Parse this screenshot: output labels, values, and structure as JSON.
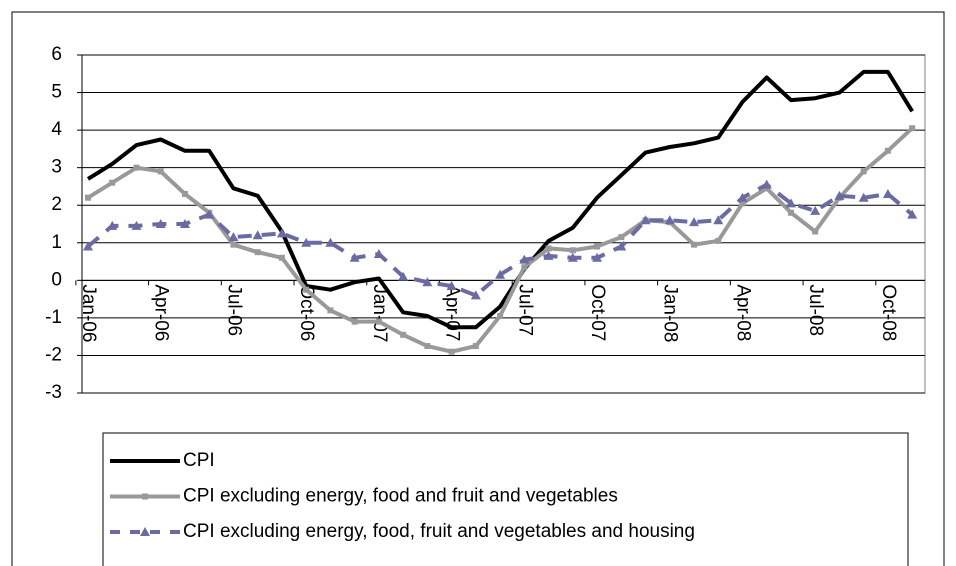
{
  "chart_data": {
    "type": "line",
    "categories": [
      "Jan-06",
      null,
      null,
      "Apr-06",
      null,
      null,
      "Jul-06",
      null,
      null,
      "Oct-06",
      null,
      null,
      "Jan-07",
      null,
      null,
      "Apr-07",
      null,
      null,
      "Jul-07",
      null,
      null,
      "Oct-07",
      null,
      null,
      "Jan-08",
      null,
      null,
      "Apr-08",
      null,
      null,
      "Jul-08",
      null,
      null,
      "Oct-08",
      null
    ],
    "series": [
      {
        "name": "CPI",
        "color": "#000000",
        "style": "solid",
        "marker": "none",
        "values": [
          2.7,
          3.1,
          3.6,
          3.75,
          3.45,
          3.45,
          2.45,
          2.25,
          1.3,
          -0.15,
          -0.25,
          -0.05,
          0.05,
          -0.85,
          -0.95,
          -1.25,
          -1.25,
          -0.7,
          0.3,
          1.05,
          1.4,
          2.2,
          2.8,
          3.4,
          3.55,
          3.65,
          3.8,
          4.75,
          5.4,
          4.8,
          4.85,
          5.0,
          5.55,
          5.55,
          4.5
        ]
      },
      {
        "name": "CPI excluding energy, food and fruit and vegetables",
        "color": "#999999",
        "style": "solid",
        "marker": "square",
        "values": [
          2.2,
          2.6,
          3.0,
          2.9,
          2.3,
          1.8,
          0.95,
          0.75,
          0.6,
          -0.25,
          -0.8,
          -1.1,
          -1.1,
          -1.45,
          -1.75,
          -1.9,
          -1.75,
          -0.95,
          0.35,
          0.85,
          0.8,
          0.9,
          1.15,
          1.6,
          1.55,
          0.95,
          1.05,
          2.05,
          2.45,
          1.8,
          1.3,
          2.2,
          2.9,
          3.45,
          4.05
        ]
      },
      {
        "name": "CPI excluding energy, food, fruit and vegetables and housing",
        "color": "#6b6ba3",
        "style": "dashed",
        "marker": "triangle",
        "values": [
          0.9,
          1.45,
          1.45,
          1.5,
          1.5,
          1.75,
          1.15,
          1.2,
          1.25,
          1.0,
          1.0,
          0.6,
          0.7,
          0.1,
          -0.05,
          -0.15,
          -0.4,
          0.15,
          0.55,
          0.65,
          0.6,
          0.6,
          0.9,
          1.6,
          1.6,
          1.55,
          1.6,
          2.2,
          2.55,
          2.05,
          1.85,
          2.25,
          2.2,
          2.3,
          1.75
        ]
      }
    ],
    "ylim": [
      -3,
      6
    ],
    "yticks": [
      -3,
      -2,
      -1,
      0,
      1,
      2,
      3,
      4,
      5,
      6
    ],
    "grid": true,
    "legend": "bottom"
  }
}
